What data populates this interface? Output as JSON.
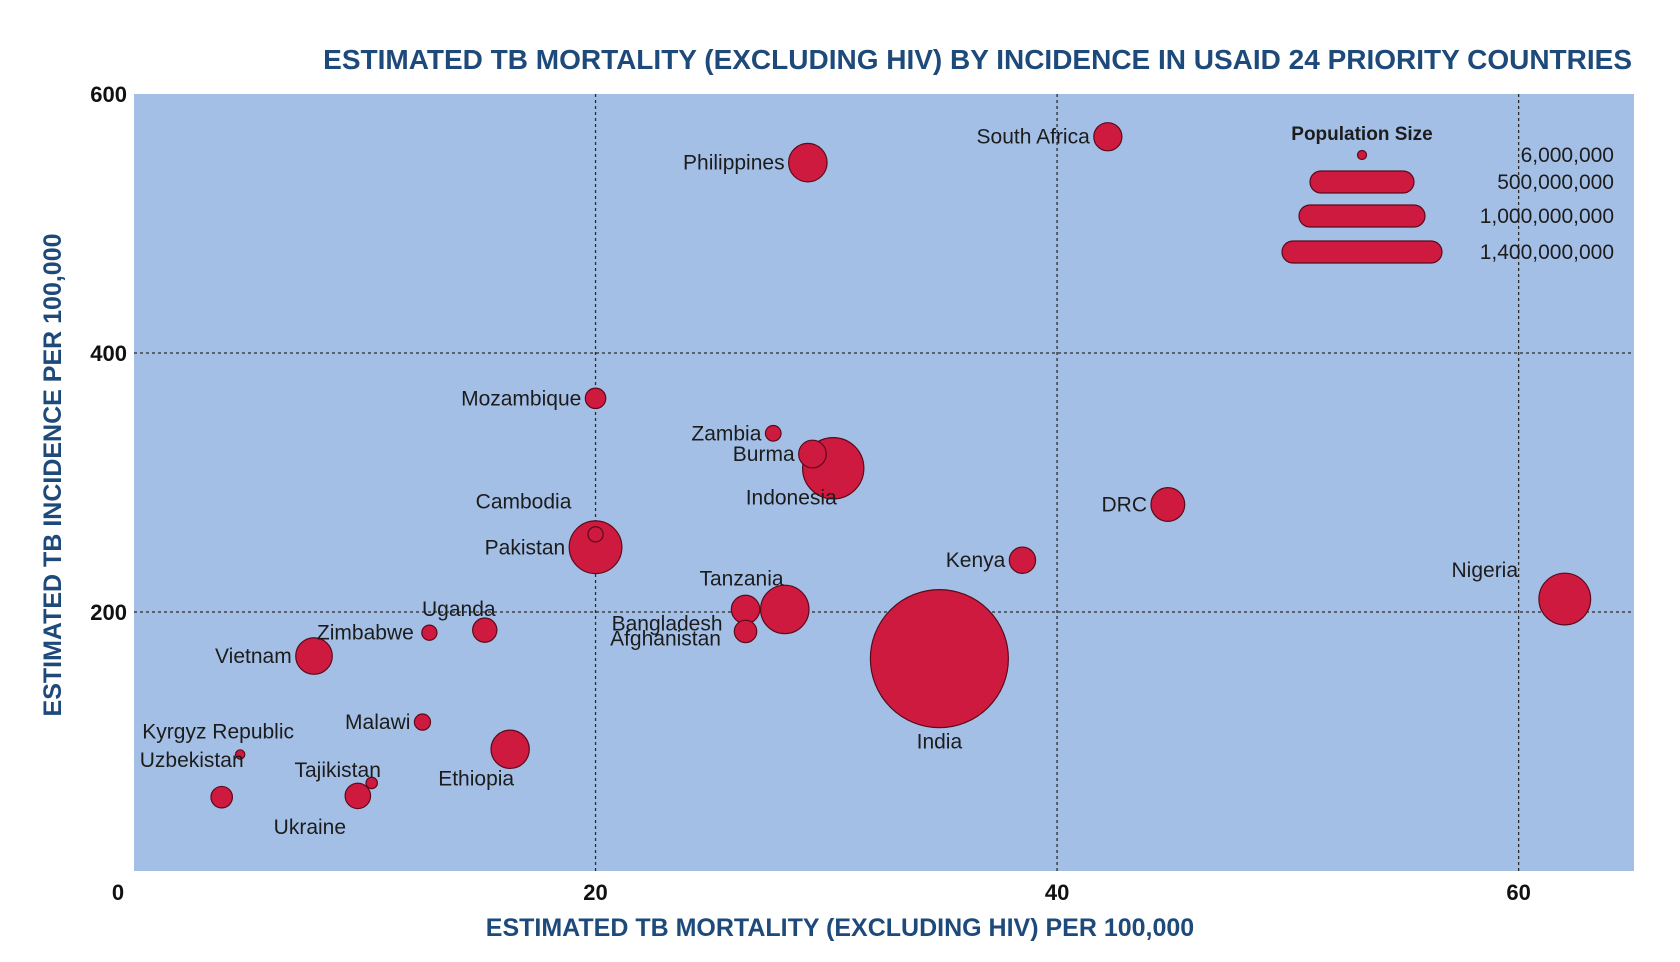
{
  "chart_data": {
    "type": "scatter",
    "title": "ESTIMATED TB MORTALITY (EXCLUDING HIV) BY INCIDENCE IN USAID 24 PRIORITY COUNTRIES",
    "xlabel": "ESTIMATED TB MORTALITY (EXCLUDING HIV) PER 100,000",
    "ylabel": "ESTIMATED TB INCIDENCE PER 100,000",
    "xlim": [
      0,
      65
    ],
    "ylim": [
      0,
      600
    ],
    "x_ticks": [
      "0",
      "20",
      "40",
      "60"
    ],
    "y_ticks": [
      "200",
      "400",
      "600"
    ],
    "grid": true,
    "plot_background": "#a4bfe6",
    "bubble_color": "#cf1a40",
    "points": [
      {
        "label": "South Africa",
        "x": 42.2,
        "y": 567,
        "population": 55000000
      },
      {
        "label": "Philippines",
        "x": 29.2,
        "y": 547,
        "population": 103000000
      },
      {
        "label": "Mozambique",
        "x": 20.0,
        "y": 365,
        "population": 29000000
      },
      {
        "label": "Zambia",
        "x": 27.7,
        "y": 338,
        "population": 17000000
      },
      {
        "label": "Burma",
        "x": 29.4,
        "y": 322,
        "population": 53000000
      },
      {
        "label": "Indonesia",
        "x": 30.3,
        "y": 311,
        "population": 261000000
      },
      {
        "label": "DRC",
        "x": 44.8,
        "y": 283,
        "population": 79000000
      },
      {
        "label": "Cambodia",
        "x": 20.0,
        "y": 260,
        "population": 16000000
      },
      {
        "label": "Pakistan",
        "x": 20.0,
        "y": 250,
        "population": 193000000
      },
      {
        "label": "Kenya",
        "x": 38.5,
        "y": 240,
        "population": 48000000
      },
      {
        "label": "Nigeria",
        "x": 62.0,
        "y": 210,
        "population": 186000000
      },
      {
        "label": "Tanzania",
        "x": 26.5,
        "y": 202,
        "population": 56000000
      },
      {
        "label": "Bangladesh",
        "x": 28.2,
        "y": 202,
        "population": 163000000
      },
      {
        "label": "Afghanistan",
        "x": 26.5,
        "y": 185,
        "population": 35000000
      },
      {
        "label": "Uganda",
        "x": 15.2,
        "y": 186,
        "population": 41000000
      },
      {
        "label": "Zimbabwe",
        "x": 12.8,
        "y": 184,
        "population": 16000000
      },
      {
        "label": "Vietnam",
        "x": 7.8,
        "y": 166,
        "population": 93000000
      },
      {
        "label": "India",
        "x": 34.9,
        "y": 164,
        "population": 1324000000
      },
      {
        "label": "Malawi",
        "x": 12.5,
        "y": 115,
        "population": 18000000
      },
      {
        "label": "Ethiopia",
        "x": 16.3,
        "y": 94,
        "population": 102000000
      },
      {
        "label": "Kyrgyz Republic",
        "x": 4.6,
        "y": 90,
        "population": 6000000
      },
      {
        "label": "Tajikistan",
        "x": 10.3,
        "y": 68,
        "population": 9000000
      },
      {
        "label": "Uzbekistan",
        "x": 3.8,
        "y": 57,
        "population": 32000000
      },
      {
        "label": "Ukraine",
        "x": 9.7,
        "y": 58,
        "population": 45000000
      }
    ],
    "legend": {
      "title": "Population Size",
      "placement": "top-right",
      "entries": [
        {
          "label": "6,000,000",
          "population": 6000000
        },
        {
          "label": "500,000,000",
          "population": 500000000
        },
        {
          "label": "1,000,000,000",
          "population": 1000000000
        },
        {
          "label": "1,400,000,000",
          "population": 1400000000
        }
      ]
    }
  }
}
